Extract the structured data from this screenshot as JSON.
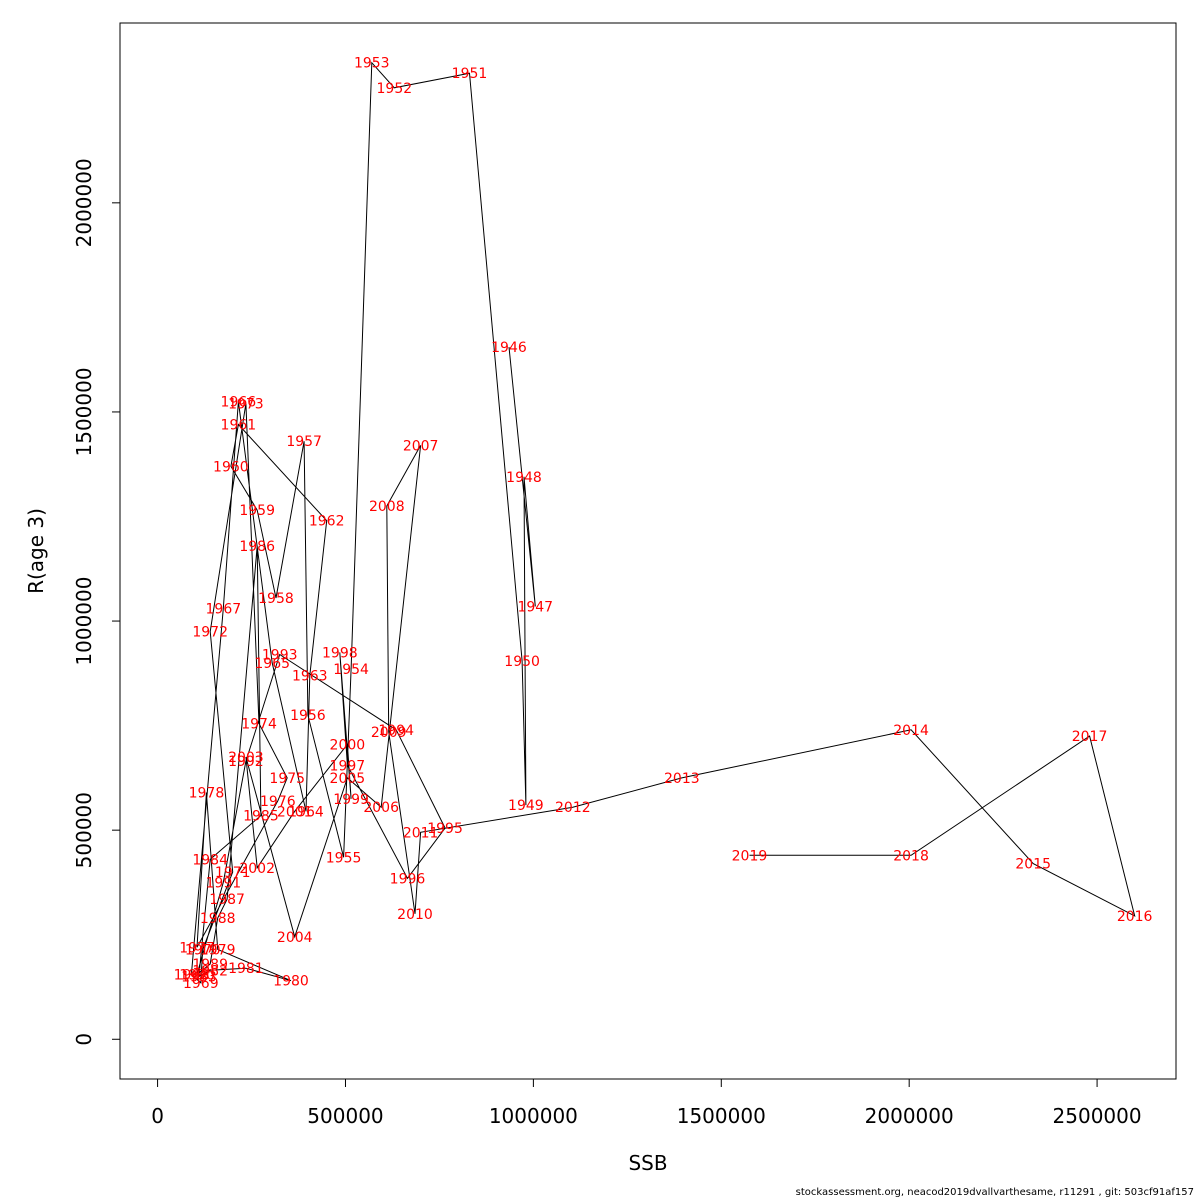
{
  "footer": "stockassessment.org, neacod2019dvallvarthesame, r11291 , git: 503cf91af157",
  "chart_data": {
    "type": "line",
    "xlabel": "SSB",
    "ylabel": "R(age 3)",
    "xlim": [
      -100000,
      2710000
    ],
    "ylim": [
      -95000,
      2430000
    ],
    "x_ticks": [
      0,
      500000,
      1000000,
      1500000,
      2000000,
      2500000
    ],
    "x_tick_labels": [
      "0",
      "500000",
      "1000000",
      "1500000",
      "2000000",
      "2500000"
    ],
    "y_ticks": [
      0,
      500000,
      1000000,
      1500000,
      2000000
    ],
    "y_tick_labels": [
      "0",
      "500000",
      "1000000",
      "1500000",
      "2000000"
    ],
    "line_color": "#000000",
    "label_color": "#ff0000",
    "points": [
      {
        "year": "1946",
        "x": 935000,
        "y": 1655000
      },
      {
        "year": "1947",
        "x": 1005000,
        "y": 1035000
      },
      {
        "year": "1948",
        "x": 975000,
        "y": 1345000
      },
      {
        "year": "1949",
        "x": 980000,
        "y": 560000
      },
      {
        "year": "1950",
        "x": 970000,
        "y": 905000
      },
      {
        "year": "1951",
        "x": 830000,
        "y": 2310000
      },
      {
        "year": "1952",
        "x": 630000,
        "y": 2275000
      },
      {
        "year": "1953",
        "x": 570000,
        "y": 2335000
      },
      {
        "year": "1954",
        "x": 515000,
        "y": 885000
      },
      {
        "year": "1955",
        "x": 495000,
        "y": 435000
      },
      {
        "year": "1956",
        "x": 400000,
        "y": 775000
      },
      {
        "year": "1957",
        "x": 390000,
        "y": 1430000
      },
      {
        "year": "1958",
        "x": 315000,
        "y": 1055000
      },
      {
        "year": "1959",
        "x": 265000,
        "y": 1265000
      },
      {
        "year": "1960",
        "x": 195000,
        "y": 1370000
      },
      {
        "year": "1961",
        "x": 215000,
        "y": 1470000
      },
      {
        "year": "1962",
        "x": 450000,
        "y": 1240000
      },
      {
        "year": "1963",
        "x": 405000,
        "y": 870000
      },
      {
        "year": "1964",
        "x": 395000,
        "y": 545000
      },
      {
        "year": "1965",
        "x": 305000,
        "y": 900000
      },
      {
        "year": "1966",
        "x": 215000,
        "y": 1525000
      },
      {
        "year": "1967",
        "x": 175000,
        "y": 1030000
      },
      {
        "year": "1968",
        "x": 90000,
        "y": 155000
      },
      {
        "year": "1969",
        "x": 115000,
        "y": 135000
      },
      {
        "year": "1970",
        "x": 120000,
        "y": 215000
      },
      {
        "year": "1971",
        "x": 200000,
        "y": 400000
      },
      {
        "year": "1972",
        "x": 140000,
        "y": 975000
      },
      {
        "year": "1973",
        "x": 235000,
        "y": 1520000
      },
      {
        "year": "1974",
        "x": 270000,
        "y": 755000
      },
      {
        "year": "1975",
        "x": 345000,
        "y": 625000
      },
      {
        "year": "1976",
        "x": 320000,
        "y": 570000
      },
      {
        "year": "1977",
        "x": 105000,
        "y": 220000
      },
      {
        "year": "1978",
        "x": 130000,
        "y": 590000
      },
      {
        "year": "1979",
        "x": 160000,
        "y": 215000
      },
      {
        "year": "1980",
        "x": 355000,
        "y": 140000
      },
      {
        "year": "1981",
        "x": 235000,
        "y": 170000
      },
      {
        "year": "1982",
        "x": 140000,
        "y": 165000
      },
      {
        "year": "1983",
        "x": 110000,
        "y": 150000
      },
      {
        "year": "1984",
        "x": 140000,
        "y": 430000
      },
      {
        "year": "1985",
        "x": 275000,
        "y": 535000
      },
      {
        "year": "1986",
        "x": 265000,
        "y": 1180000
      },
      {
        "year": "1987",
        "x": 185000,
        "y": 335000
      },
      {
        "year": "1988",
        "x": 160000,
        "y": 290000
      },
      {
        "year": "1989",
        "x": 140000,
        "y": 180000
      },
      {
        "year": "1990",
        "x": 105000,
        "y": 155000
      },
      {
        "year": "1991",
        "x": 175000,
        "y": 375000
      },
      {
        "year": "1992",
        "x": 235000,
        "y": 665000
      },
      {
        "year": "1993",
        "x": 325000,
        "y": 920000
      },
      {
        "year": "1994",
        "x": 635000,
        "y": 740000
      },
      {
        "year": "1995",
        "x": 765000,
        "y": 505000
      },
      {
        "year": "1996",
        "x": 665000,
        "y": 385000
      },
      {
        "year": "1997",
        "x": 505000,
        "y": 655000
      },
      {
        "year": "1998",
        "x": 485000,
        "y": 925000
      },
      {
        "year": "1999",
        "x": 515000,
        "y": 575000
      },
      {
        "year": "2000",
        "x": 505000,
        "y": 705000
      },
      {
        "year": "2001",
        "x": 365000,
        "y": 545000
      },
      {
        "year": "2002",
        "x": 265000,
        "y": 410000
      },
      {
        "year": "2003",
        "x": 235000,
        "y": 675000
      },
      {
        "year": "2004",
        "x": 365000,
        "y": 245000
      },
      {
        "year": "2005",
        "x": 505000,
        "y": 625000
      },
      {
        "year": "2006",
        "x": 595000,
        "y": 555000
      },
      {
        "year": "2007",
        "x": 700000,
        "y": 1420000
      },
      {
        "year": "2008",
        "x": 610000,
        "y": 1275000
      },
      {
        "year": "2009",
        "x": 615000,
        "y": 735000
      },
      {
        "year": "2010",
        "x": 685000,
        "y": 300000
      },
      {
        "year": "2011",
        "x": 700000,
        "y": 495000
      },
      {
        "year": "2012",
        "x": 1105000,
        "y": 555000
      },
      {
        "year": "2013",
        "x": 1395000,
        "y": 625000
      },
      {
        "year": "2014",
        "x": 2005000,
        "y": 740000
      },
      {
        "year": "2015",
        "x": 2330000,
        "y": 420000
      },
      {
        "year": "2016",
        "x": 2600000,
        "y": 295000
      },
      {
        "year": "2017",
        "x": 2480000,
        "y": 725000
      },
      {
        "year": "2018",
        "x": 2005000,
        "y": 440000
      },
      {
        "year": "2019",
        "x": 1575000,
        "y": 440000
      }
    ]
  }
}
